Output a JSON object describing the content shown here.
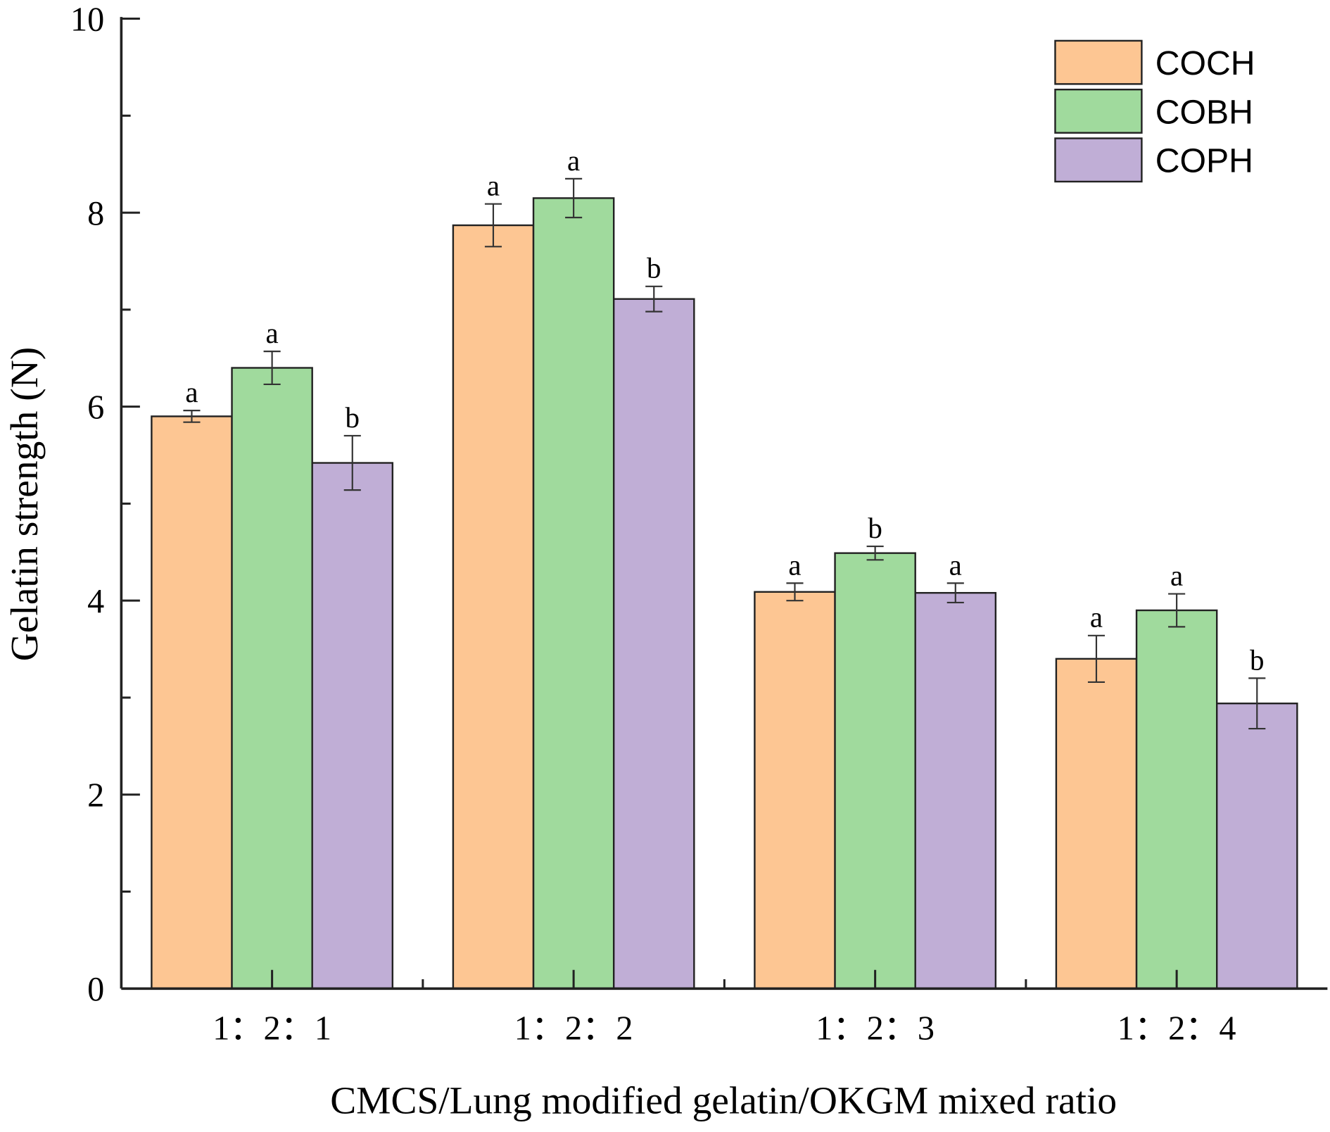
{
  "chart_data": {
    "type": "bar",
    "title": "",
    "xlabel": "CMCS/Lung modified gelatin/OKGM mixed ratio",
    "ylabel": "Gelatin strength (N)",
    "ylim": [
      0,
      10
    ],
    "yticks": [
      "0",
      "2",
      "4",
      "6",
      "8",
      "10"
    ],
    "categories": [
      "1：2：1",
      "1：2：2",
      "1：2：3",
      "1：2：4"
    ],
    "legend_position": "top-right",
    "grid": false,
    "series": [
      {
        "name": "COCH",
        "color": "#FDC693",
        "values": [
          5.9,
          7.87,
          4.09,
          3.4
        ],
        "errors": [
          0.06,
          0.22,
          0.09,
          0.24
        ],
        "letters": [
          "a",
          "a",
          "a",
          "a"
        ]
      },
      {
        "name": "COBH",
        "color": "#A0DA9D",
        "values": [
          6.4,
          8.15,
          4.49,
          3.9
        ],
        "errors": [
          0.17,
          0.2,
          0.07,
          0.17
        ],
        "letters": [
          "a",
          "a",
          "b",
          "a"
        ]
      },
      {
        "name": "COPH",
        "color": "#C0AED6",
        "values": [
          5.42,
          7.11,
          4.08,
          2.94
        ],
        "errors": [
          0.28,
          0.13,
          0.1,
          0.26
        ],
        "letters": [
          "b",
          "b",
          "a",
          "b"
        ]
      }
    ]
  }
}
